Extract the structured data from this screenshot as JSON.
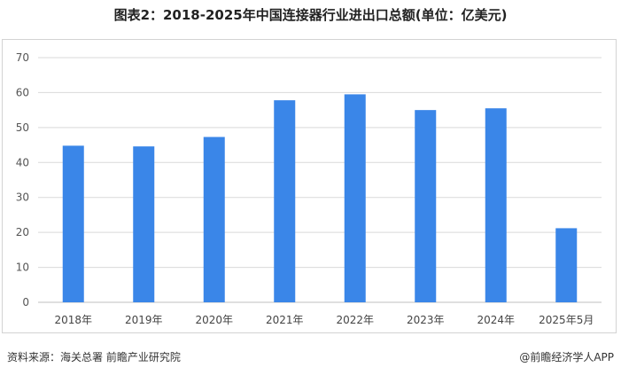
{
  "title": "图表2：2018-2025年中国连接器行业进出口总额(单位：亿美元)",
  "chart_data": {
    "type": "bar",
    "title": "图表2：2018-2025年中国连接器行业进出口总额(单位：亿美元)",
    "xlabel": "",
    "ylabel": "",
    "categories": [
      "2018年",
      "2019年",
      "2020年",
      "2021年",
      "2022年",
      "2023年",
      "2024年",
      "2025年5月"
    ],
    "values": [
      44.8,
      44.6,
      47.3,
      57.8,
      59.5,
      55.0,
      55.5,
      21.2
    ],
    "ylim": [
      0,
      70
    ],
    "yticks": [
      0,
      10,
      20,
      30,
      40,
      50,
      60,
      70
    ],
    "grid": true,
    "bar_color": "#3a86e8"
  },
  "footer": {
    "source": "资料来源：海关总署 前瞻产业研究院",
    "brand": "@前瞻经济学人APP"
  }
}
